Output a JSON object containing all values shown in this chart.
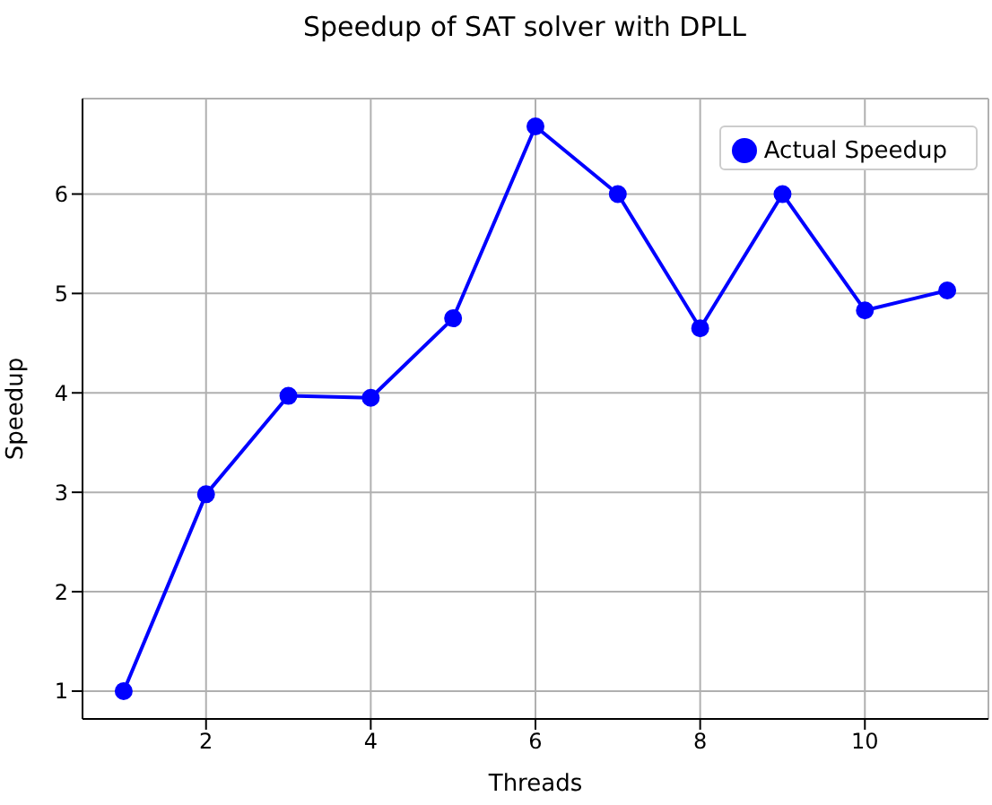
{
  "chart_data": {
    "type": "line",
    "title": "Speedup of SAT solver with DPLL",
    "xlabel": "Threads",
    "ylabel": "Speedup",
    "x": [
      1,
      2,
      3,
      4,
      5,
      6,
      7,
      8,
      9,
      10,
      11
    ],
    "series": [
      {
        "name": "Actual Speedup",
        "color": "#0000ff",
        "values": [
          1.0,
          2.98,
          3.97,
          3.95,
          4.75,
          6.68,
          6.0,
          4.65,
          6.0,
          4.83,
          5.03
        ]
      }
    ],
    "xlim": [
      0.5,
      11.5
    ],
    "xticks": [
      2,
      4,
      6,
      8,
      10
    ],
    "ylim": [
      0.72,
      6.96
    ],
    "yticks": [
      1,
      2,
      3,
      4,
      5,
      6
    ],
    "grid": true,
    "legend": "top right",
    "marker": "circle",
    "line_style": "solid"
  }
}
